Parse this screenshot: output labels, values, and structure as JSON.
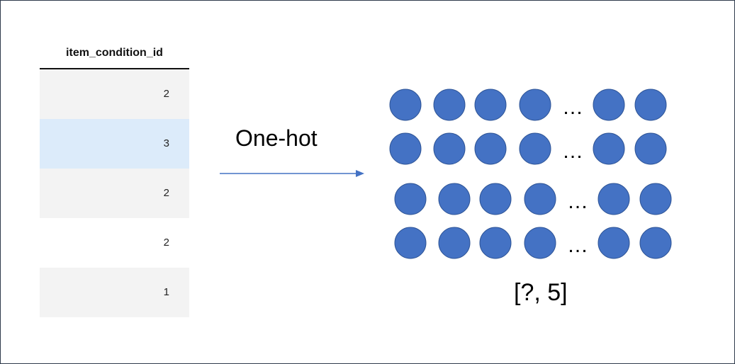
{
  "table": {
    "header": "item_condition_id",
    "rows": [
      "2",
      "3",
      "2",
      "2",
      "1"
    ],
    "selected_row_index": 1
  },
  "transform": {
    "label": "One-hot",
    "arrow_color": "#4472c4"
  },
  "output": {
    "ellipsis": "…",
    "shape_label": "[?, 5]",
    "circle_color": "#4472c4",
    "circle_stroke": "#2f5597"
  }
}
